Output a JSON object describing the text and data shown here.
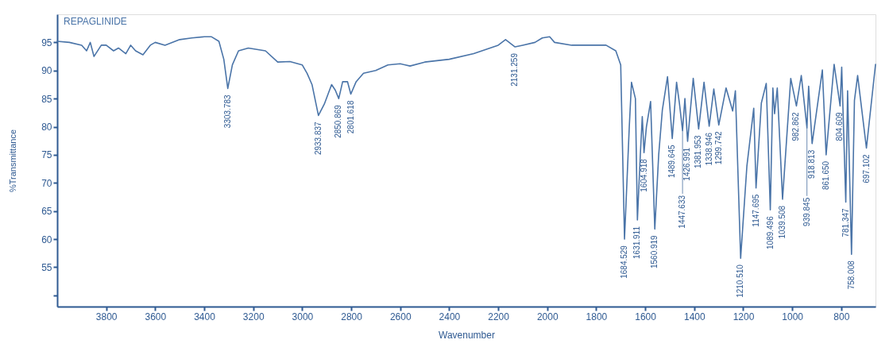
{
  "chart_data": {
    "type": "line",
    "xlabel": "Wavenumber",
    "ylabel": "%Transmittance",
    "xlim": [
      4000,
      660
    ],
    "xticks": [
      3800,
      3600,
      3400,
      3200,
      3000,
      2800,
      2600,
      2400,
      2200,
      2000,
      1800,
      1600,
      1400,
      1200,
      1000,
      800
    ],
    "ylim": [
      48,
      100
    ],
    "yticks": [
      {
        "value": 50,
        "label": null
      },
      55,
      60,
      65,
      70,
      75,
      80,
      85,
      90,
      95
    ],
    "grid": false,
    "legend": "top left",
    "marker": "none",
    "line_style": "solid",
    "series": [
      {
        "name": "REPAGLINIDE",
        "color": "#4a74a8",
        "x": [
          4000,
          3950,
          3900,
          3880,
          3865,
          3850,
          3820,
          3800,
          3770,
          3750,
          3720,
          3700,
          3680,
          3650,
          3620,
          3600,
          3560,
          3500,
          3450,
          3400,
          3370,
          3340,
          3320,
          3303.783,
          3285,
          3260,
          3220,
          3150,
          3100,
          3050,
          3000,
          2980,
          2960,
          2933.837,
          2910,
          2880,
          2865,
          2850.869,
          2835,
          2815,
          2801.618,
          2780,
          2750,
          2700,
          2650,
          2600,
          2560,
          2500,
          2400,
          2300,
          2200,
          2170,
          2131.259,
          2100,
          2050,
          2020,
          1990,
          1970,
          1900,
          1800,
          1760,
          1720,
          1700,
          1684.529,
          1665,
          1656,
          1640,
          1631.911,
          1620,
          1612,
          1604.918,
          1595,
          1578,
          1560.919,
          1545,
          1530,
          1509,
          1489.645,
          1472,
          1460,
          1447.633,
          1438,
          1426.991,
          1404,
          1381.953,
          1360,
          1338.946,
          1320,
          1299.742,
          1270,
          1243,
          1232,
          1210.51,
          1185,
          1157,
          1147.695,
          1126,
          1106,
          1089.496,
          1079,
          1072,
          1061,
          1039.508,
          1006,
          982.862,
          963,
          939.845,
          933,
          918.813,
          877,
          861.65,
          829,
          804.609,
          798,
          781.347,
          774,
          758.008,
          746,
          733,
          697.102,
          660
        ],
        "values": [
          95.2,
          95,
          94.5,
          93.5,
          95,
          92.5,
          94.5,
          94.5,
          93.5,
          94,
          93,
          94.5,
          93.5,
          92.8,
          94.5,
          95,
          94.5,
          95.5,
          95.8,
          96,
          96,
          95.2,
          92,
          86.8,
          91,
          93.5,
          94,
          93.5,
          91.5,
          91.6,
          91,
          89.5,
          87.5,
          82,
          84,
          87.5,
          86.5,
          85,
          88,
          88,
          85.8,
          88,
          89.5,
          90,
          91,
          91.2,
          90.8,
          91.5,
          92,
          93,
          94.5,
          95.5,
          94.2,
          94.5,
          95,
          95.8,
          96,
          95,
          94.5,
          94.5,
          94.5,
          93.5,
          91,
          60,
          80,
          87.9,
          85,
          63.4,
          75,
          81.8,
          75.4,
          80,
          84.5,
          61.8,
          75,
          83,
          88.9,
          77.9,
          87.9,
          84,
          79.3,
          85,
          77.4,
          88.6,
          79.6,
          87.9,
          80.1,
          86.7,
          80.3,
          86.9,
          82.8,
          86.4,
          56.6,
          73,
          83.3,
          69.1,
          84.2,
          87.7,
          65.2,
          86.9,
          82.3,
          86.9,
          67.1,
          88.6,
          83.7,
          89.1,
          79.8,
          87.2,
          77,
          90.1,
          75,
          91.1,
          83.7,
          90.6,
          66.6,
          86.4,
          57.3,
          84.7,
          89.1,
          76.2,
          91.1
        ]
      }
    ],
    "annotations": [
      {
        "text": "3303.783",
        "x": 3303.783,
        "y": 86.8
      },
      {
        "text": "2933.837",
        "x": 2933.837,
        "y": 82
      },
      {
        "text": "2850.869",
        "x": 2850.869,
        "y": 85
      },
      {
        "text": "2801.618",
        "x": 2801.618,
        "y": 85.8
      },
      {
        "text": "2131.259",
        "x": 2131.259,
        "y": 94.2
      },
      {
        "text": "1684.529",
        "x": 1684.529,
        "y": 60
      },
      {
        "text": "1631.911",
        "x": 1631.911,
        "y": 63.4
      },
      {
        "text": "1604.918",
        "x": 1604.918,
        "y": 75.4
      },
      {
        "text": "1560.919",
        "x": 1560.919,
        "y": 61.8
      },
      {
        "text": "1489.645",
        "x": 1489.645,
        "y": 77.9
      },
      {
        "text": "1447.633",
        "x": 1447.633,
        "y": 79.3
      },
      {
        "text": "1426.991",
        "x": 1426.991,
        "y": 77.4
      },
      {
        "text": "1381.953",
        "x": 1381.953,
        "y": 79.6
      },
      {
        "text": "1338.946",
        "x": 1338.946,
        "y": 80.1
      },
      {
        "text": "1299.742",
        "x": 1299.742,
        "y": 80.3
      },
      {
        "text": "1210.510",
        "x": 1210.51,
        "y": 56.6
      },
      {
        "text": "1147.695",
        "x": 1147.695,
        "y": 69.1
      },
      {
        "text": "1089.496",
        "x": 1089.496,
        "y": 65.2
      },
      {
        "text": "1039.508",
        "x": 1039.508,
        "y": 67.1
      },
      {
        "text": "982.862",
        "x": 982.862,
        "y": 83.7
      },
      {
        "text": "939.845",
        "x": 939.845,
        "y": 79.8
      },
      {
        "text": "918.813",
        "x": 918.813,
        "y": 77
      },
      {
        "text": "861.650",
        "x": 861.65,
        "y": 75
      },
      {
        "text": "804.609",
        "x": 804.609,
        "y": 83.7
      },
      {
        "text": "781.347",
        "x": 781.347,
        "y": 66.6
      },
      {
        "text": "758.008",
        "x": 758.008,
        "y": 57.3
      },
      {
        "text": "697.102",
        "x": 697.102,
        "y": 76.2
      }
    ]
  }
}
